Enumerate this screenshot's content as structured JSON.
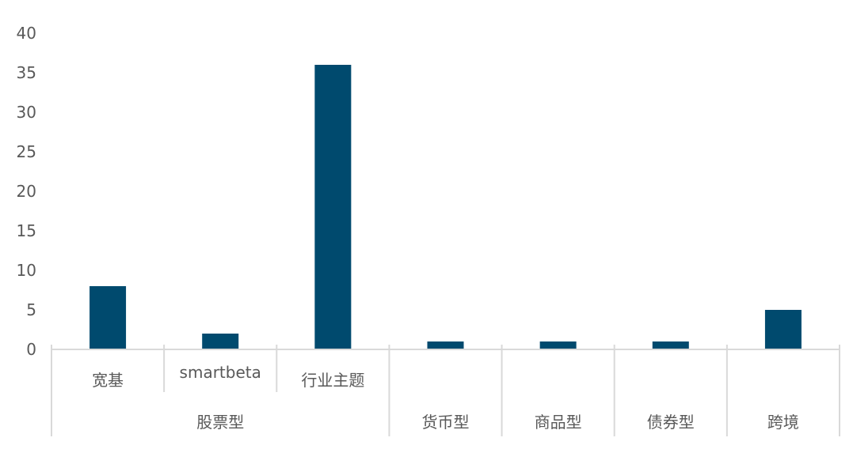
{
  "chart_data": {
    "type": "bar",
    "title": "",
    "xlabel": "",
    "ylabel": "",
    "ylim": [
      0,
      40
    ],
    "yticks": [
      0,
      5,
      10,
      15,
      20,
      25,
      30,
      35,
      40
    ],
    "grid": false,
    "legend": "none",
    "bar_color": "#004a6e",
    "axis_color": "#d9d9d9",
    "categories": [
      "宽基",
      "smartbeta",
      "行业主题",
      "",
      "",
      "",
      ""
    ],
    "groups": [
      {
        "label": "股票型",
        "span": 3
      },
      {
        "label": "货币型",
        "span": 1
      },
      {
        "label": "商品型",
        "span": 1
      },
      {
        "label": "债券型",
        "span": 1
      },
      {
        "label": "跨境",
        "span": 1
      }
    ],
    "values": [
      8,
      2,
      36,
      1,
      1,
      1,
      5
    ]
  }
}
